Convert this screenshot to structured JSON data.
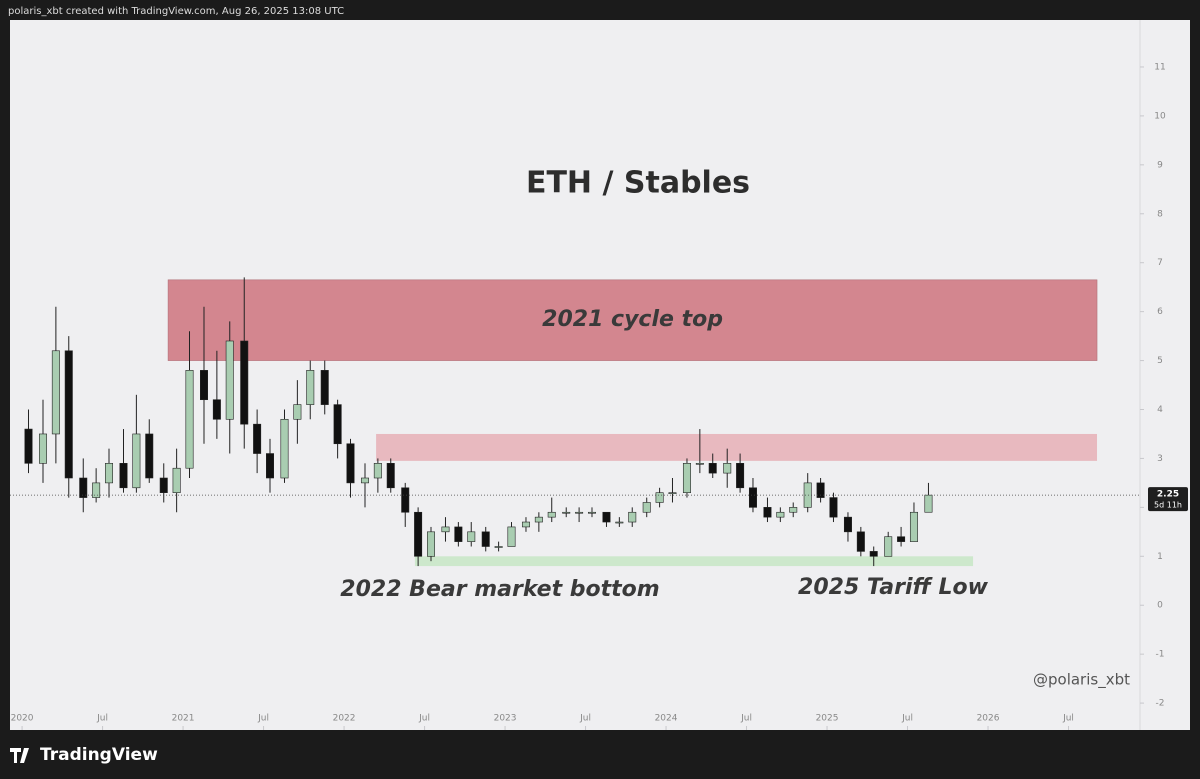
{
  "chart_data": {
    "type": "candlestick",
    "header": "polaris_xbt created with TradingView.com, Aug 26, 2025 13:08 UTC",
    "title": "ETH / Stables",
    "watermark": "@polaris_xbt",
    "brand": "TradingView",
    "countdown": "5d 11h",
    "annotations": [
      "2022 Bear market bottom",
      "2025 Tariff Low"
    ],
    "zones": [
      {
        "label": "2021 cycle top",
        "x": [
          2020.907,
          2026.677
        ],
        "y": [
          5.0,
          6.65
        ],
        "color": "#d3868f"
      },
      {
        "x": [
          2022.199,
          2026.677
        ],
        "y": [
          2.95,
          3.5
        ],
        "color": "#e8b9bf"
      },
      {
        "x": [
          2022.44,
          2025.907
        ],
        "y": [
          0.8,
          1.0
        ],
        "color": "#cde8cc"
      }
    ],
    "up_color": "#a9cdb1",
    "down_color": "#111111",
    "xlim": [
      2019.925,
      2026.944
    ],
    "ylim": [
      -2.55,
      11.96
    ],
    "xticks": [
      2020,
      {
        "value": 2020.5,
        "label": "Jul"
      },
      2021,
      {
        "value": 2021.5,
        "label": "Jul"
      },
      2022,
      {
        "value": 2022.5,
        "label": "Jul"
      },
      2023,
      {
        "value": 2023.5,
        "label": "Jul"
      },
      2024,
      {
        "value": 2024.5,
        "label": "Jul"
      },
      2025,
      {
        "value": 2025.5,
        "label": "Jul"
      },
      2026,
      {
        "value": 2026.5,
        "label": "Jul"
      }
    ],
    "yticks": [
      -2,
      -1,
      0,
      1,
      2,
      3,
      4,
      5,
      6,
      7,
      8,
      9,
      10,
      11
    ],
    "x": [
      2020.04,
      2020.13,
      2020.21,
      2020.29,
      2020.38,
      2020.46,
      2020.54,
      2020.63,
      2020.71,
      2020.79,
      2020.88,
      2020.96,
      2021.04,
      2021.13,
      2021.21,
      2021.29,
      2021.38,
      2021.46,
      2021.54,
      2021.63,
      2021.71,
      2021.79,
      2021.88,
      2021.96,
      2022.04,
      2022.13,
      2022.21,
      2022.29,
      2022.38,
      2022.46,
      2022.54,
      2022.63,
      2022.71,
      2022.79,
      2022.88,
      2022.96,
      2023.04,
      2023.13,
      2023.21,
      2023.29,
      2023.38,
      2023.46,
      2023.54,
      2023.63,
      2023.71,
      2023.79,
      2023.88,
      2023.96,
      2024.04,
      2024.13,
      2024.21,
      2024.29,
      2024.38,
      2024.46,
      2024.54,
      2024.63,
      2024.71,
      2024.79,
      2024.88,
      2024.96,
      2025.04,
      2025.13,
      2025.21,
      2025.29,
      2025.38,
      2025.46,
      2025.54,
      2025.63
    ],
    "open": [
      3.6,
      2.9,
      3.5,
      5.2,
      2.6,
      2.2,
      2.5,
      2.9,
      2.4,
      3.5,
      2.6,
      2.3,
      2.8,
      4.8,
      4.2,
      3.8,
      5.4,
      3.7,
      3.1,
      2.6,
      3.8,
      4.1,
      4.8,
      4.1,
      3.3,
      2.5,
      2.6,
      2.9,
      2.4,
      1.9,
      1.0,
      1.5,
      1.6,
      1.3,
      1.5,
      1.2,
      1.2,
      1.6,
      1.7,
      1.8,
      1.9,
      1.9,
      1.9,
      1.9,
      1.7,
      1.7,
      1.9,
      2.1,
      2.3,
      2.3,
      2.9,
      2.9,
      2.7,
      2.9,
      2.4,
      2.0,
      1.8,
      1.9,
      2.0,
      2.5,
      2.2,
      1.8,
      1.5,
      1.1,
      1.0,
      1.4,
      1.3,
      1.9
    ],
    "high": [
      4.0,
      4.2,
      6.1,
      5.5,
      3.0,
      2.8,
      3.2,
      3.6,
      4.3,
      3.8,
      2.9,
      3.2,
      5.6,
      6.1,
      5.2,
      5.8,
      6.7,
      4.0,
      3.4,
      4.0,
      4.6,
      5.0,
      5.0,
      4.2,
      3.4,
      2.9,
      3.0,
      3.0,
      2.5,
      2.0,
      1.6,
      1.8,
      1.7,
      1.7,
      1.6,
      1.3,
      1.7,
      1.8,
      1.9,
      2.2,
      2.0,
      2.0,
      2.0,
      1.9,
      1.8,
      2.0,
      2.2,
      2.4,
      2.6,
      3.0,
      3.6,
      3.1,
      3.2,
      3.1,
      2.6,
      2.2,
      2.0,
      2.1,
      2.7,
      2.6,
      2.3,
      1.9,
      1.6,
      1.2,
      1.5,
      1.6,
      2.1,
      2.5
    ],
    "low": [
      2.7,
      2.5,
      2.9,
      2.2,
      1.9,
      2.1,
      2.2,
      2.3,
      2.3,
      2.5,
      2.1,
      1.9,
      2.6,
      3.3,
      3.4,
      3.1,
      3.2,
      2.7,
      2.3,
      2.5,
      3.3,
      3.8,
      3.9,
      3.0,
      2.2,
      2.0,
      2.3,
      2.3,
      1.6,
      0.8,
      0.9,
      1.3,
      1.2,
      1.2,
      1.1,
      1.1,
      1.2,
      1.5,
      1.5,
      1.7,
      1.8,
      1.7,
      1.8,
      1.6,
      1.6,
      1.6,
      1.8,
      2.0,
      2.1,
      2.2,
      2.7,
      2.6,
      2.4,
      2.3,
      1.9,
      1.7,
      1.7,
      1.8,
      1.9,
      2.1,
      1.7,
      1.3,
      1.0,
      0.8,
      1.0,
      1.2,
      1.3,
      1.9
    ],
    "close": [
      2.9,
      3.5,
      5.2,
      2.6,
      2.2,
      2.5,
      2.9,
      2.4,
      3.5,
      2.6,
      2.3,
      2.8,
      4.8,
      4.2,
      3.8,
      5.4,
      3.7,
      3.1,
      2.6,
      3.8,
      4.1,
      4.8,
      4.1,
      3.3,
      2.5,
      2.6,
      2.9,
      2.4,
      1.9,
      1.0,
      1.5,
      1.6,
      1.3,
      1.5,
      1.2,
      1.2,
      1.6,
      1.7,
      1.8,
      1.9,
      1.9,
      1.9,
      1.9,
      1.7,
      1.7,
      1.9,
      2.1,
      2.3,
      2.3,
      2.9,
      2.9,
      2.7,
      2.9,
      2.4,
      2.0,
      1.8,
      1.9,
      2.0,
      2.5,
      2.2,
      1.8,
      1.5,
      1.1,
      1.0,
      1.4,
      1.3,
      1.9,
      2.25
    ]
  }
}
